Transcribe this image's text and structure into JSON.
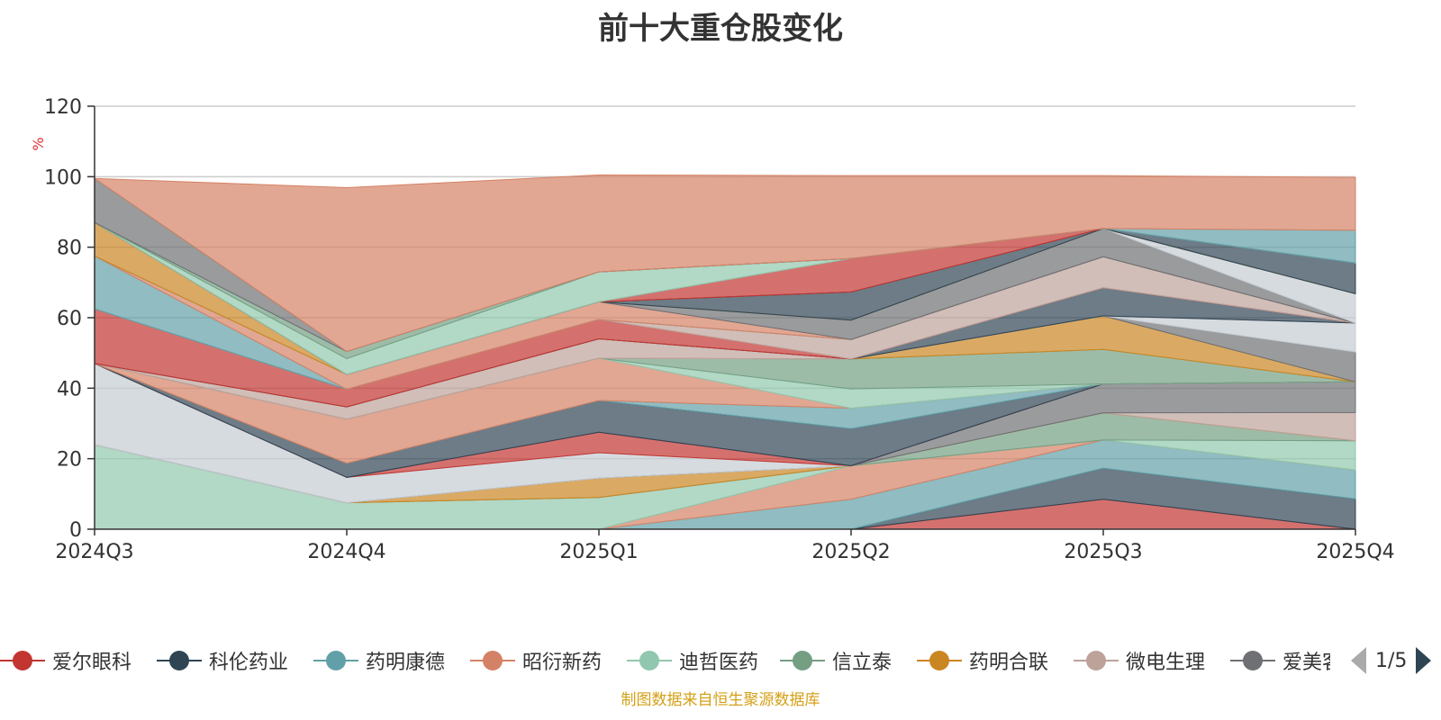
{
  "title": "前十大重仓股变化",
  "source_note": "制图数据来自恒生聚源数据库",
  "legend": {
    "items": [
      {
        "name": "爱尔眼科",
        "color": "#c23531"
      },
      {
        "name": "科伦药业",
        "color": "#2f4554"
      },
      {
        "name": "药明康德",
        "color": "#61a0a8"
      },
      {
        "name": "昭衍新药",
        "color": "#d48265"
      },
      {
        "name": "迪哲医药",
        "color": "#91c7ae"
      },
      {
        "name": "信立泰",
        "color": "#749f83"
      },
      {
        "name": "药明合联",
        "color": "#ca8622"
      },
      {
        "name": "微电生理",
        "color": "#bda29a"
      },
      {
        "name": "爱美客",
        "color": "#6e7074"
      }
    ],
    "page": "1/5"
  },
  "chart_data": {
    "type": "area",
    "stacked": true,
    "title": "前十大重仓股变化",
    "ylabel": "%",
    "ylim": [
      0,
      120
    ],
    "yticks": [
      0,
      20,
      40,
      60,
      80,
      100,
      120
    ],
    "categories": [
      "2024Q3",
      "2024Q4",
      "2025Q1",
      "2025Q2",
      "2025Q3",
      "2025Q4"
    ],
    "grid": true,
    "series": [
      {
        "color": "#c23531",
        "values": [
          0,
          0,
          0,
          0,
          8.5,
          0
        ]
      },
      {
        "color": "#2f4554",
        "values": [
          0,
          0,
          0,
          0,
          8.8,
          8.6
        ]
      },
      {
        "color": "#61a0a8",
        "values": [
          0,
          0,
          0,
          8.5,
          8.0,
          8.2
        ]
      },
      {
        "color": "#d48265",
        "values": [
          0,
          0,
          0,
          9.5,
          0,
          0
        ]
      },
      {
        "color": "#91c7ae",
        "values": [
          24,
          7.5,
          9,
          0,
          0,
          8.3
        ]
      },
      {
        "color": "#749f83",
        "values": [
          0,
          0,
          0,
          0,
          7.7,
          0
        ]
      },
      {
        "color": "#ca8622",
        "values": [
          0,
          0,
          5.5,
          0,
          0,
          0
        ]
      },
      {
        "color": "#bda29a",
        "values": [
          0,
          0,
          0,
          0,
          0,
          8.0
        ]
      },
      {
        "color": "#6e7074",
        "values": [
          0,
          0,
          0,
          0,
          8.2,
          8.7
        ]
      },
      {
        "color": "#c4ccd3",
        "values": [
          23,
          7.2,
          7.2,
          0,
          0,
          0
        ]
      },
      {
        "color": "#c23531",
        "values": [
          0,
          0,
          5.8,
          0,
          0,
          0
        ]
      },
      {
        "color": "#2f4554",
        "values": [
          0,
          4.0,
          9.0,
          10.5,
          0,
          0
        ]
      },
      {
        "color": "#61a0a8",
        "values": [
          0,
          0,
          0,
          5.8,
          0,
          0
        ]
      },
      {
        "color": "#d48265",
        "values": [
          0,
          12.5,
          12.0,
          0,
          0,
          0
        ]
      },
      {
        "color": "#91c7ae",
        "values": [
          0,
          0,
          0,
          5.5,
          0,
          0
        ]
      },
      {
        "color": "#749f83",
        "values": [
          0,
          0,
          0,
          8.5,
          9.8,
          0
        ]
      },
      {
        "color": "#ca8622",
        "values": [
          0,
          0,
          0,
          0,
          9.5,
          0
        ]
      },
      {
        "color": "#6e7074",
        "values": [
          0,
          0,
          0,
          0,
          0,
          8.5
        ]
      },
      {
        "color": "#c4ccd3",
        "values": [
          0,
          0,
          0,
          0,
          0,
          8.2
        ]
      },
      {
        "color": "#bda29a",
        "values": [
          0,
          3.5,
          5.5,
          0,
          0,
          0
        ]
      },
      {
        "color": "#2f4554",
        "values": [
          0,
          0,
          0,
          0,
          8.0,
          0
        ]
      },
      {
        "color": "#c23531",
        "values": [
          15.5,
          5.0,
          5.5,
          0,
          0,
          0
        ]
      },
      {
        "color": "#bda29a",
        "values": [
          0,
          0,
          0,
          5.5,
          8.8,
          0
        ]
      },
      {
        "color": "#61a0a8",
        "values": [
          15,
          0,
          0,
          0,
          0,
          0
        ]
      },
      {
        "color": "#d48265",
        "values": [
          0,
          4.2,
          5.0,
          0,
          0,
          0
        ]
      },
      {
        "color": "#6e7074",
        "values": [
          0,
          0,
          0,
          5.5,
          8.0,
          0
        ]
      },
      {
        "color": "#c4ccd3",
        "values": [
          0,
          0,
          0,
          0,
          0,
          8.3
        ]
      },
      {
        "color": "#ca8622",
        "values": [
          9.5,
          0,
          0,
          0,
          0,
          0
        ]
      },
      {
        "color": "#2f4554",
        "values": [
          0,
          0,
          0,
          8.0,
          0,
          8.7
        ]
      },
      {
        "color": "#c23531",
        "values": [
          0,
          0,
          0,
          9.5,
          0,
          0
        ]
      },
      {
        "color": "#91c7ae",
        "values": [
          0,
          4.5,
          8.5,
          0,
          0,
          0
        ]
      },
      {
        "color": "#749f83",
        "values": [
          0,
          2.0,
          0,
          0,
          0,
          0
        ]
      },
      {
        "color": "#6e7074",
        "values": [
          12.5,
          0,
          0,
          0,
          0,
          0
        ]
      },
      {
        "color": "#61a0a8",
        "values": [
          0,
          0,
          0,
          0,
          0,
          9.3
        ]
      },
      {
        "color": "#d48265",
        "values": [
          0,
          46.5,
          27.5,
          23.5,
          15.0,
          15.0
        ]
      }
    ]
  }
}
